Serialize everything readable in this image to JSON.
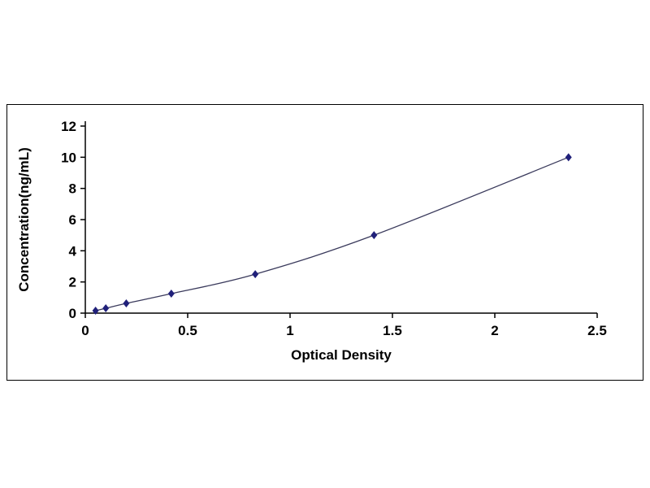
{
  "chart_data": {
    "type": "line",
    "title": "",
    "xlabel": "Optical Density",
    "ylabel": "Concentration(ng/mL)",
    "x": [
      0.05,
      0.1,
      0.2,
      0.42,
      0.83,
      1.41,
      2.36
    ],
    "y": [
      0.156,
      0.312,
      0.625,
      1.25,
      2.5,
      5,
      10
    ],
    "xlim": [
      0,
      2.5
    ],
    "ylim": [
      0,
      12
    ],
    "x_ticks": [
      0,
      0.5,
      1,
      1.5,
      2,
      2.5
    ],
    "x_tick_labels": [
      "0",
      "0.5",
      "1",
      "1.5",
      "2",
      "2.5"
    ],
    "y_ticks": [
      0,
      2,
      4,
      6,
      8,
      10,
      12
    ],
    "y_tick_labels": [
      "0",
      "2",
      "4",
      "6",
      "8",
      "10",
      "12"
    ],
    "grid": false,
    "legend": false,
    "marker": "diamond",
    "marker_color": "#20207a",
    "line_color": "#3a3a5c",
    "axis_color": "#000000",
    "frame_border_color": "#000000",
    "background": "#ffffff"
  }
}
